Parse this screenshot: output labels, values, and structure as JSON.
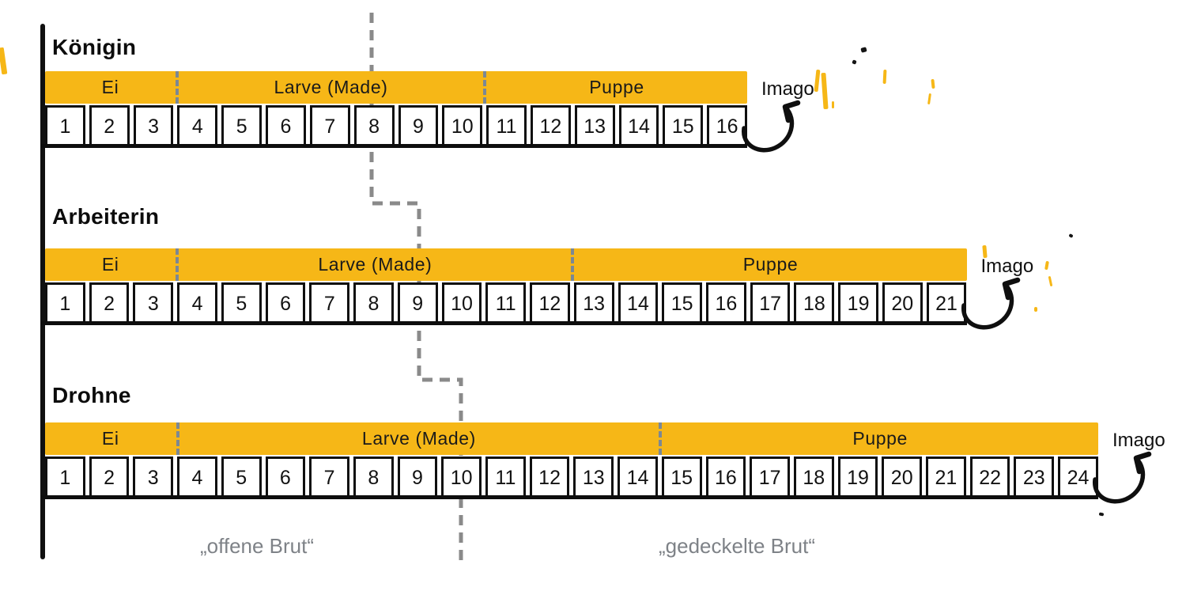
{
  "colors": {
    "stage_bar_yellow": "#F6B717",
    "cap_line_gray": "#8A8A8A",
    "segment_separator_gray": "#7C8894",
    "brood_label_gray": "#7E8287",
    "ink_black": "#111111"
  },
  "rows": [
    {
      "title": "Königin",
      "imago_label": "Imago",
      "days": [
        1,
        2,
        3,
        4,
        5,
        6,
        7,
        8,
        9,
        10,
        11,
        12,
        13,
        14,
        15,
        16
      ],
      "segments": [
        {
          "label": "Ei",
          "days": 3
        },
        {
          "label": "Larve (Made)",
          "days": 7
        },
        {
          "label": "Puppe",
          "days": 6
        }
      ]
    },
    {
      "title": "Arbeiterin",
      "imago_label": "Imago",
      "days": [
        1,
        2,
        3,
        4,
        5,
        6,
        7,
        8,
        9,
        10,
        11,
        12,
        13,
        14,
        15,
        16,
        17,
        18,
        19,
        20,
        21
      ],
      "segments": [
        {
          "label": "Ei",
          "days": 3
        },
        {
          "label": "Larve (Made)",
          "days": 9
        },
        {
          "label": "Puppe",
          "days": 9
        }
      ]
    },
    {
      "title": "Drohne",
      "imago_label": "Imago",
      "days": [
        1,
        2,
        3,
        4,
        5,
        6,
        7,
        8,
        9,
        10,
        11,
        12,
        13,
        14,
        15,
        16,
        17,
        18,
        19,
        20,
        21,
        22,
        23,
        24
      ],
      "segments": [
        {
          "label": "Ei",
          "days": 3
        },
        {
          "label": "Larve (Made)",
          "days": 11
        },
        {
          "label": "Puppe",
          "days": 10
        }
      ]
    }
  ],
  "footer": {
    "open_brood_label": "„offene Brut“",
    "capped_brood_label": "„gedeckelte Brut“"
  }
}
